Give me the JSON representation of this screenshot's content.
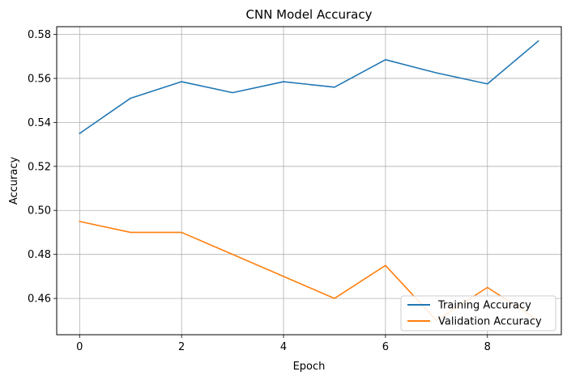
{
  "chart_data": {
    "type": "line",
    "title": "CNN Model Accuracy",
    "xlabel": "Epoch",
    "ylabel": "Accuracy",
    "xlim": [
      -0.45,
      9.45
    ],
    "ylim": [
      0.4435,
      0.5835
    ],
    "xticks": [
      0,
      2,
      4,
      6,
      8
    ],
    "yticks": [
      0.46,
      0.48,
      0.5,
      0.52,
      0.54,
      0.56,
      0.58
    ],
    "grid": true,
    "legend_position": "lower-right",
    "x": [
      0,
      1,
      2,
      3,
      4,
      5,
      6,
      7,
      8,
      9
    ],
    "series": [
      {
        "name": "Training Accuracy",
        "color": "#1f77b4",
        "values": [
          0.535,
          0.551,
          0.5585,
          0.5535,
          0.5585,
          0.556,
          0.5685,
          0.5625,
          0.5575,
          0.577
        ]
      },
      {
        "name": "Validation Accuracy",
        "color": "#ff7f0e",
        "values": [
          0.495,
          0.49,
          0.49,
          0.48,
          0.47,
          0.46,
          0.475,
          0.45,
          0.465,
          0.45
        ]
      }
    ]
  }
}
